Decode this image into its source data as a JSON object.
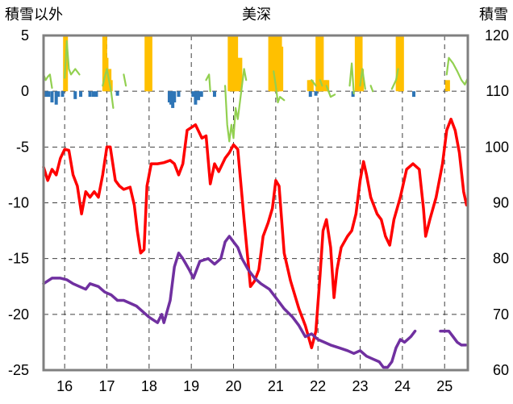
{
  "chart_data": {
    "type": "line",
    "title": "美深",
    "ylabel_left": "積雪以外",
    "ylabel_right": "積雪",
    "x_ticks": [
      "16",
      "17",
      "18",
      "19",
      "20",
      "21",
      "22",
      "23",
      "24",
      "25"
    ],
    "x_range": [
      15.5,
      25.55
    ],
    "y_left": {
      "min": -25,
      "max": 5,
      "ticks": [
        5,
        0,
        -5,
        -10,
        -15,
        -20,
        -25
      ]
    },
    "y_right": {
      "min": 60,
      "max": 120,
      "ticks": [
        120,
        110,
        100,
        90,
        80,
        70,
        60
      ]
    },
    "grid": {
      "vertical": "dashed",
      "horizontal": "dashed"
    },
    "colors": {
      "red": "#ff0000",
      "purple": "#7030a0",
      "green": "#92d050",
      "orange": "#ffc000",
      "blue": "#2e75b6",
      "frame": "#808080"
    },
    "series": [
      {
        "color": "red",
        "axis": "left",
        "points": [
          [
            15.5,
            -6.8
          ],
          [
            15.6,
            -8.0
          ],
          [
            15.7,
            -7.0
          ],
          [
            15.8,
            -7.5
          ],
          [
            15.9,
            -6.0
          ],
          [
            16.0,
            -5.2
          ],
          [
            16.1,
            -5.3
          ],
          [
            16.2,
            -7.5
          ],
          [
            16.3,
            -8.5
          ],
          [
            16.4,
            -11.0
          ],
          [
            16.5,
            -9.0
          ],
          [
            16.6,
            -9.5
          ],
          [
            16.7,
            -9.0
          ],
          [
            16.8,
            -9.5
          ],
          [
            16.9,
            -7.5
          ],
          [
            17.0,
            -5.0
          ],
          [
            17.08,
            -5.0
          ],
          [
            17.2,
            -8.0
          ],
          [
            17.3,
            -8.5
          ],
          [
            17.4,
            -8.8
          ],
          [
            17.55,
            -8.6
          ],
          [
            17.65,
            -10.2
          ],
          [
            17.72,
            -12.5
          ],
          [
            17.8,
            -14.5
          ],
          [
            17.88,
            -14.2
          ],
          [
            17.95,
            -8.5
          ],
          [
            18.05,
            -6.5
          ],
          [
            18.2,
            -6.5
          ],
          [
            18.35,
            -6.4
          ],
          [
            18.5,
            -6.2
          ],
          [
            18.6,
            -6.5
          ],
          [
            18.7,
            -7.5
          ],
          [
            18.8,
            -6.5
          ],
          [
            18.9,
            -3.5
          ],
          [
            19.1,
            -3.0
          ],
          [
            19.25,
            -4.2
          ],
          [
            19.35,
            -4.0
          ],
          [
            19.45,
            -8.3
          ],
          [
            19.55,
            -6.5
          ],
          [
            19.65,
            -7.2
          ],
          [
            19.8,
            -6.0
          ],
          [
            19.9,
            -5.5
          ],
          [
            20.0,
            -4.8
          ],
          [
            20.1,
            -5.2
          ],
          [
            20.25,
            -11.5
          ],
          [
            20.4,
            -17.5
          ],
          [
            20.5,
            -17.0
          ],
          [
            20.6,
            -16.0
          ],
          [
            20.7,
            -13.0
          ],
          [
            20.82,
            -11.8
          ],
          [
            20.92,
            -10.5
          ],
          [
            21.0,
            -8.0
          ],
          [
            21.08,
            -8.5
          ],
          [
            21.2,
            -14.5
          ],
          [
            21.35,
            -17.0
          ],
          [
            21.55,
            -19.5
          ],
          [
            21.7,
            -21.0
          ],
          [
            21.85,
            -23.0
          ],
          [
            21.95,
            -21.5
          ],
          [
            22.05,
            -16.5
          ],
          [
            22.12,
            -12.5
          ],
          [
            22.2,
            -11.5
          ],
          [
            22.3,
            -14.0
          ],
          [
            22.38,
            -18.5
          ],
          [
            22.45,
            -16.0
          ],
          [
            22.55,
            -14.0
          ],
          [
            22.7,
            -13.0
          ],
          [
            22.8,
            -12.5
          ],
          [
            22.9,
            -11.0
          ],
          [
            23.0,
            -8.0
          ],
          [
            23.08,
            -6.3
          ],
          [
            23.15,
            -7.5
          ],
          [
            23.25,
            -9.5
          ],
          [
            23.4,
            -11.0
          ],
          [
            23.5,
            -11.5
          ],
          [
            23.6,
            -13.0
          ],
          [
            23.7,
            -13.8
          ],
          [
            23.8,
            -11.5
          ],
          [
            23.95,
            -9.5
          ],
          [
            24.1,
            -7.0
          ],
          [
            24.25,
            -6.5
          ],
          [
            24.4,
            -7.0
          ],
          [
            24.5,
            -10.5
          ],
          [
            24.55,
            -13.0
          ],
          [
            24.65,
            -11.5
          ],
          [
            24.8,
            -9.5
          ],
          [
            24.95,
            -6.5
          ],
          [
            25.05,
            -3.5
          ],
          [
            25.15,
            -2.5
          ],
          [
            25.25,
            -3.5
          ],
          [
            25.35,
            -5.5
          ],
          [
            25.45,
            -9.0
          ],
          [
            25.52,
            -10.2
          ]
        ]
      },
      {
        "color": "purple",
        "axis": "right",
        "points": [
          [
            15.5,
            75.5
          ],
          [
            15.7,
            76.5
          ],
          [
            15.9,
            76.5
          ],
          [
            16.05,
            76.2
          ],
          [
            16.2,
            75.5
          ],
          [
            16.35,
            75.0
          ],
          [
            16.5,
            74.5
          ],
          [
            16.6,
            75.5
          ],
          [
            16.8,
            75.0
          ],
          [
            16.95,
            74.0
          ],
          [
            17.1,
            73.5
          ],
          [
            17.25,
            72.5
          ],
          [
            17.4,
            72.5
          ],
          [
            17.55,
            72.0
          ],
          [
            17.7,
            71.5
          ],
          [
            17.85,
            70.5
          ],
          [
            18.0,
            69.5
          ],
          [
            18.1,
            69.0
          ],
          [
            18.2,
            68.5
          ],
          [
            18.3,
            70.0
          ],
          [
            18.35,
            68.5
          ],
          [
            18.5,
            72.5
          ],
          [
            18.6,
            78.5
          ],
          [
            18.7,
            81.0
          ],
          [
            18.8,
            80.0
          ],
          [
            18.95,
            78.0
          ],
          [
            19.05,
            76.5
          ],
          [
            19.2,
            79.5
          ],
          [
            19.4,
            80.0
          ],
          [
            19.55,
            79.0
          ],
          [
            19.7,
            80.0
          ],
          [
            19.8,
            83.0
          ],
          [
            19.9,
            84.0
          ],
          [
            20.0,
            83.0
          ],
          [
            20.1,
            82.0
          ],
          [
            20.2,
            80.0
          ],
          [
            20.35,
            78.0
          ],
          [
            20.5,
            76.5
          ],
          [
            20.65,
            75.5
          ],
          [
            20.85,
            74.5
          ],
          [
            21.0,
            73.0
          ],
          [
            21.2,
            71.0
          ],
          [
            21.4,
            69.5
          ],
          [
            21.55,
            68.0
          ],
          [
            21.7,
            66.0
          ],
          [
            21.85,
            66.5
          ],
          [
            22.0,
            65.5
          ],
          [
            22.15,
            65.0
          ],
          [
            22.3,
            64.5
          ],
          [
            22.5,
            64.0
          ],
          [
            22.7,
            63.5
          ],
          [
            22.85,
            63.0
          ],
          [
            23.0,
            63.5
          ],
          [
            23.15,
            62.5
          ],
          [
            23.3,
            62.0
          ],
          [
            23.45,
            61.5
          ],
          [
            23.55,
            60.5
          ],
          [
            23.65,
            60.5
          ],
          [
            23.75,
            61.5
          ],
          [
            23.85,
            64.0
          ],
          [
            23.95,
            65.5
          ],
          [
            24.05,
            65.0
          ],
          [
            24.2,
            66.0
          ],
          [
            24.3,
            67.0
          ]
        ]
      },
      {
        "color": "purple",
        "axis": "right",
        "points": [
          [
            24.9,
            67.0
          ],
          [
            25.1,
            67.0
          ],
          [
            25.2,
            66.0
          ],
          [
            25.3,
            65.0
          ],
          [
            25.4,
            64.5
          ],
          [
            25.5,
            64.5
          ]
        ]
      },
      {
        "color": "green",
        "axis": "left",
        "points": [
          [
            15.5,
            1.5
          ],
          [
            15.55,
            1.0
          ],
          [
            15.6,
            1.3
          ],
          [
            15.65,
            1.5
          ],
          [
            15.7,
            0.3
          ]
        ]
      },
      {
        "color": "green",
        "axis": "left",
        "points": [
          [
            16.0,
            1.2
          ],
          [
            16.05,
            4.5
          ],
          [
            16.1,
            2.0
          ],
          [
            16.15,
            1.5
          ],
          [
            16.25,
            2.0
          ],
          [
            16.35,
            1.5
          ]
        ]
      },
      {
        "color": "green",
        "axis": "left",
        "points": [
          [
            16.9,
            0.5
          ],
          [
            16.95,
            1.3
          ],
          [
            17.0,
            2.0
          ],
          [
            17.05,
            1.0
          ],
          [
            17.1,
            0.0
          ],
          [
            17.15,
            -1.5
          ]
        ]
      },
      {
        "color": "green",
        "axis": "left",
        "points": [
          [
            17.4,
            1.5
          ],
          [
            17.45,
            0.5
          ]
        ]
      },
      {
        "color": "green",
        "axis": "left",
        "points": [
          [
            19.35,
            1.0
          ],
          [
            19.42,
            1.5
          ],
          [
            19.45,
            0.0
          ]
        ]
      },
      {
        "color": "green",
        "axis": "left",
        "points": [
          [
            19.8,
            0.5
          ],
          [
            19.85,
            -3.0
          ],
          [
            19.9,
            -4.5
          ],
          [
            19.95,
            -3.0
          ],
          [
            20.0,
            -4.2
          ],
          [
            20.05,
            -1.5
          ],
          [
            20.1,
            -2.5
          ],
          [
            20.15,
            -1.0
          ],
          [
            20.2,
            0.5
          ],
          [
            20.25,
            2.0
          ],
          [
            20.3,
            1.0
          ]
        ]
      },
      {
        "color": "green",
        "axis": "left",
        "points": [
          [
            20.95,
            1.8
          ],
          [
            21.0,
            0.5
          ],
          [
            21.05,
            -1.0
          ],
          [
            21.1,
            -0.5
          ],
          [
            21.2,
            -0.8
          ]
        ]
      },
      {
        "color": "green",
        "axis": "left",
        "points": [
          [
            21.85,
            1.0
          ],
          [
            21.95,
            0.5
          ]
        ]
      },
      {
        "color": "green",
        "axis": "left",
        "points": [
          [
            22.05,
            1.0
          ],
          [
            22.1,
            0.5
          ]
        ]
      },
      {
        "color": "green",
        "axis": "left",
        "points": [
          [
            22.2,
            0.5
          ],
          [
            22.3,
            -0.5
          ],
          [
            22.4,
            -0.3
          ]
        ]
      },
      {
        "color": "green",
        "axis": "left",
        "points": [
          [
            22.75,
            0.5
          ],
          [
            22.8,
            2.5
          ],
          [
            22.85,
            -0.2
          ]
        ]
      },
      {
        "color": "green",
        "axis": "left",
        "points": [
          [
            23.0,
            0.5
          ],
          [
            23.05,
            2.0
          ],
          [
            23.12,
            0.2
          ]
        ]
      },
      {
        "color": "green",
        "axis": "left",
        "points": [
          [
            23.25,
            0.5
          ],
          [
            23.3,
            0.0
          ]
        ]
      },
      {
        "color": "green",
        "axis": "left",
        "points": [
          [
            23.75,
            0.2
          ],
          [
            23.85,
            1.0
          ],
          [
            23.9,
            2.0
          ]
        ]
      },
      {
        "color": "green",
        "axis": "left",
        "points": [
          [
            25.05,
            1.5
          ],
          [
            25.1,
            3.0
          ],
          [
            25.2,
            2.5
          ],
          [
            25.3,
            1.8
          ],
          [
            25.4,
            1.0
          ],
          [
            25.48,
            0.6
          ],
          [
            25.55,
            1.2
          ]
        ]
      }
    ],
    "bars_orange": [
      [
        16.02,
        5
      ],
      [
        16.95,
        5
      ],
      [
        16.98,
        3
      ],
      [
        17.05,
        2
      ],
      [
        17.08,
        1
      ],
      [
        17.95,
        5
      ],
      [
        17.98,
        5
      ],
      [
        18.02,
        5
      ],
      [
        19.92,
        5
      ],
      [
        19.95,
        5
      ],
      [
        19.98,
        5
      ],
      [
        20.02,
        5
      ],
      [
        20.05,
        5
      ],
      [
        20.15,
        3
      ],
      [
        20.88,
        5
      ],
      [
        20.91,
        5
      ],
      [
        20.94,
        5
      ],
      [
        20.97,
        5
      ],
      [
        21.0,
        5
      ],
      [
        21.03,
        5
      ],
      [
        21.06,
        5
      ],
      [
        21.09,
        5
      ],
      [
        21.12,
        4
      ],
      [
        21.8,
        1
      ],
      [
        21.84,
        1
      ],
      [
        22.0,
        5
      ],
      [
        22.02,
        5
      ],
      [
        22.05,
        5
      ],
      [
        22.08,
        5
      ],
      [
        22.17,
        1
      ],
      [
        22.21,
        1
      ],
      [
        22.93,
        5
      ],
      [
        23.0,
        5
      ],
      [
        23.03,
        2
      ],
      [
        23.9,
        5
      ],
      [
        23.94,
        5
      ],
      [
        23.98,
        5
      ],
      [
        25.07,
        1
      ]
    ],
    "bars_blue": [
      [
        15.55,
        -0.5
      ],
      [
        15.62,
        -0.5
      ],
      [
        15.7,
        -1.0
      ],
      [
        15.8,
        -1.2
      ],
      [
        15.85,
        -0.5
      ],
      [
        15.95,
        -0.5
      ],
      [
        16.25,
        -0.7
      ],
      [
        16.38,
        -0.5
      ],
      [
        16.6,
        -0.5
      ],
      [
        16.68,
        -0.5
      ],
      [
        16.75,
        -0.5
      ],
      [
        17.25,
        -0.4
      ],
      [
        18.48,
        -1.0
      ],
      [
        18.52,
        -1.2
      ],
      [
        18.56,
        -1.5
      ],
      [
        18.6,
        -1.0
      ],
      [
        18.7,
        -0.5
      ],
      [
        19.04,
        -0.5
      ],
      [
        19.1,
        -1.2
      ],
      [
        19.17,
        -0.8
      ],
      [
        19.24,
        -0.5
      ],
      [
        19.55,
        -0.5
      ],
      [
        21.82,
        -0.5
      ],
      [
        21.95,
        -0.4
      ],
      [
        22.83,
        -0.5
      ],
      [
        24.27,
        -0.5
      ]
    ]
  }
}
